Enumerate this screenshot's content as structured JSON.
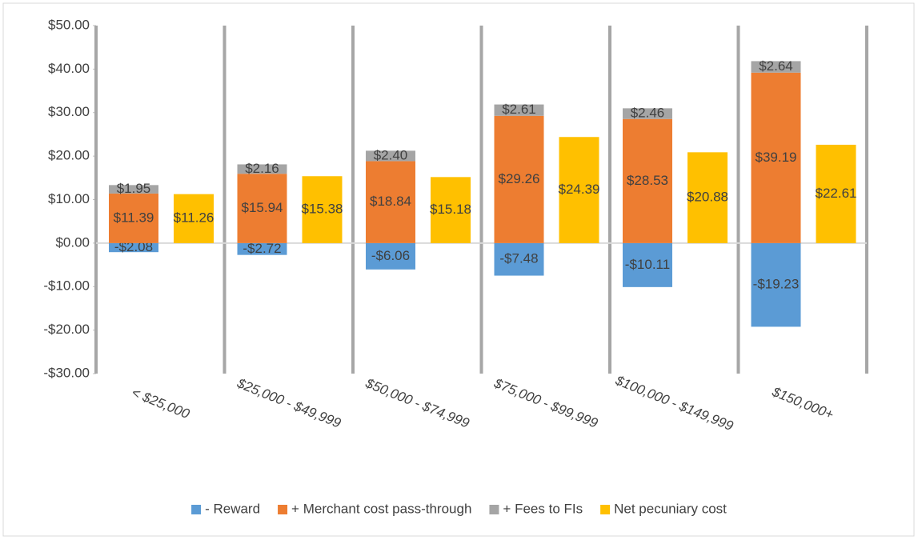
{
  "chart_data": {
    "type": "bar",
    "categories": [
      "< $25,000",
      "$25,000 - $49,999",
      "$50,000 - $74,999",
      "$75,000 - $99,999",
      "$100,000 - $149,999",
      "$150,000+"
    ],
    "series": [
      {
        "name": "- Reward",
        "color": "#5b9bd5",
        "stack": 0,
        "values": [
          -2.08,
          -2.72,
          -6.06,
          -7.48,
          -10.11,
          -19.23
        ],
        "value_labels": [
          "-$2.08",
          "-$2.72",
          "-$6.06",
          "-$7.48",
          "-$10.11",
          "-$19.23"
        ]
      },
      {
        "name": "+ Merchant cost pass-through",
        "color": "#ed7d31",
        "stack": 0,
        "values": [
          11.39,
          15.94,
          18.84,
          29.26,
          28.53,
          39.19
        ],
        "value_labels": [
          "$11.39",
          "$15.94",
          "$18.84",
          "$29.26",
          "$28.53",
          "$39.19"
        ]
      },
      {
        "name": "+ Fees to FIs",
        "color": "#a5a5a5",
        "stack": 0,
        "values": [
          1.95,
          2.16,
          2.4,
          2.61,
          2.46,
          2.64
        ],
        "value_labels": [
          "$1.95",
          "$2.16",
          "$2.40",
          "$2.61",
          "$2.46",
          "$2.64"
        ]
      },
      {
        "name": "Net pecuniary cost",
        "color": "#ffc000",
        "stack": 1,
        "values": [
          11.26,
          15.38,
          15.18,
          24.39,
          20.88,
          22.61
        ],
        "value_labels": [
          "$11.26",
          "$15.38",
          "$15.18",
          "$24.39",
          "$20.88",
          "$22.61"
        ]
      }
    ],
    "ylim": [
      -30,
      50
    ],
    "yticks": [
      {
        "value": -30,
        "label": "-$30.00"
      },
      {
        "value": -20,
        "label": "-$20.00"
      },
      {
        "value": -10,
        "label": "-$10.00"
      },
      {
        "value": 0,
        "label": "$0.00"
      },
      {
        "value": 10,
        "label": "$10.00"
      },
      {
        "value": 20,
        "label": "$20.00"
      },
      {
        "value": 30,
        "label": "$30.00"
      },
      {
        "value": 40,
        "label": "$40.00"
      },
      {
        "value": 50,
        "label": "$50.00"
      }
    ],
    "legend": "bottom"
  }
}
